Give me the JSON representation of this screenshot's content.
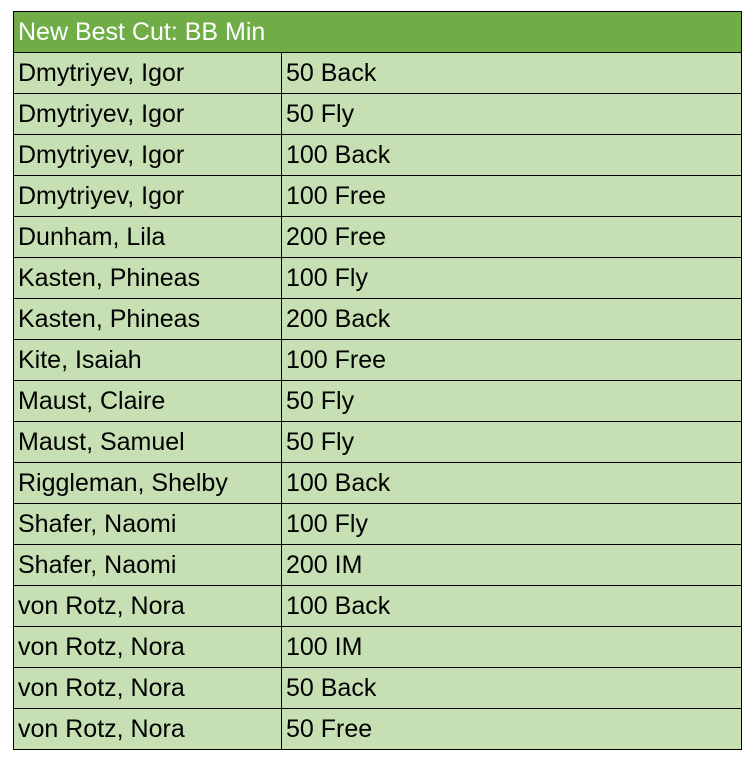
{
  "table": {
    "title": "New Best Cut: BB Min",
    "rows": [
      [
        "Dmytriyev, Igor",
        "50 Back"
      ],
      [
        "Dmytriyev, Igor",
        "50 Fly"
      ],
      [
        "Dmytriyev, Igor",
        "100 Back"
      ],
      [
        "Dmytriyev, Igor",
        "100 Free"
      ],
      [
        "Dunham, Lila",
        "200 Free"
      ],
      [
        "Kasten, Phineas",
        "100 Fly"
      ],
      [
        "Kasten, Phineas",
        "200 Back"
      ],
      [
        "Kite, Isaiah",
        "100 Free"
      ],
      [
        "Maust, Claire",
        "50 Fly"
      ],
      [
        "Maust, Samuel",
        "50 Fly"
      ],
      [
        "Riggleman, Shelby",
        "100 Back"
      ],
      [
        "Shafer, Naomi",
        "100 Fly"
      ],
      [
        "Shafer, Naomi",
        "200 IM"
      ],
      [
        "von Rotz, Nora",
        "100 Back"
      ],
      [
        "von Rotz, Nora",
        "100 IM"
      ],
      [
        "von Rotz, Nora",
        "50 Back"
      ],
      [
        "von Rotz, Nora",
        "50 Free"
      ]
    ]
  }
}
